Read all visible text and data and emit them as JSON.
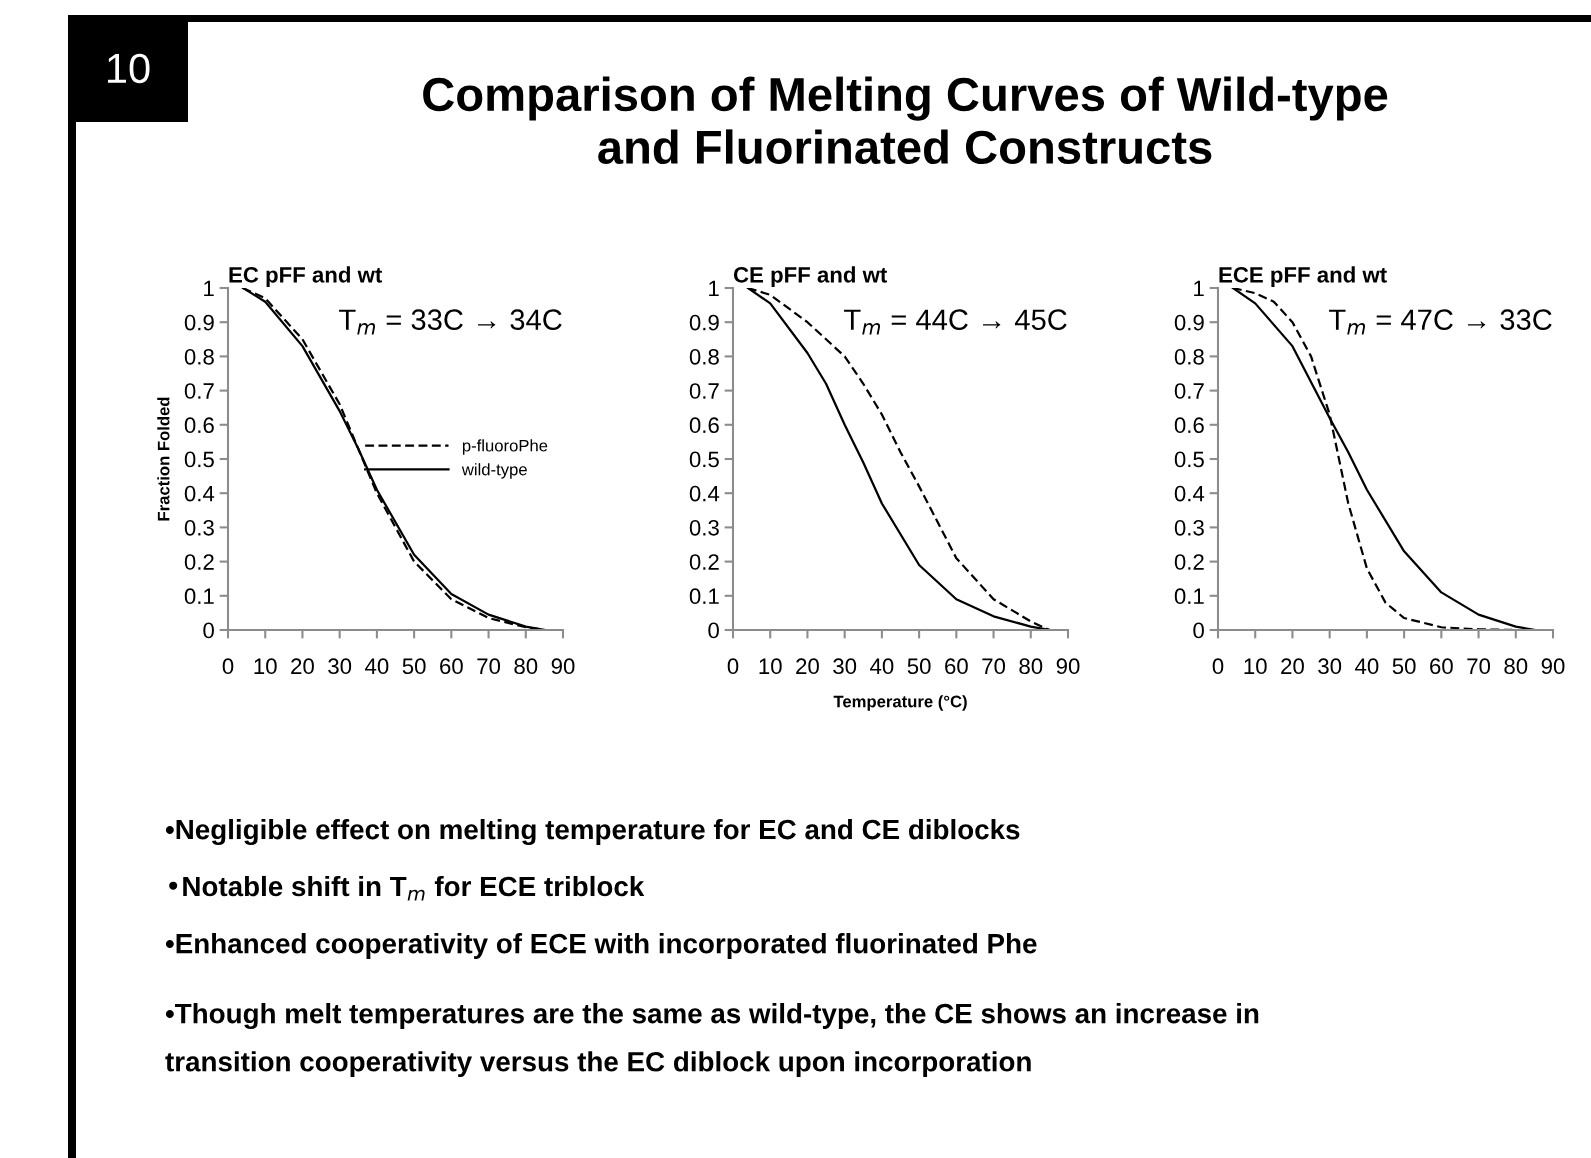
{
  "chart_data": [
    {
      "type": "other",
      "title": "Comparison of Melting Curves of Wild-type\nand Fluorinated Constructs",
      "annotations": [
        "10"
      ]
    },
    {
      "type": "line",
      "title": "EC pFF and wt",
      "ylabel": "Fraction Folded",
      "annotations": [
        "T$_{m}$ = 33C → 34C"
      ],
      "legend": "right",
      "xlim": [
        0,
        90
      ],
      "xticks": [
        0,
        10,
        20,
        30,
        40,
        50,
        60,
        70,
        80,
        90
      ],
      "ylim": [
        0,
        1
      ],
      "yticks": [
        0,
        0.1,
        0.2,
        0.3,
        0.4,
        0.5,
        0.6,
        0.7,
        0.8,
        0.9,
        1
      ],
      "grid": false,
      "marker": "none",
      "series": [
        {
          "name": "p-fluoroPhe",
          "color": "#000000",
          "line_style": "dashed",
          "x": [
            4,
            10,
            20,
            30,
            35,
            40,
            50,
            60,
            70,
            80,
            85
          ],
          "values": [
            1,
            0.97,
            0.85,
            0.66,
            0.53,
            0.4,
            0.2,
            0.09,
            0.035,
            0.008,
            0
          ]
        },
        {
          "name": "wild-type",
          "color": "#000000",
          "line_style": "solid",
          "x": [
            4,
            10,
            20,
            30,
            35,
            40,
            50,
            60,
            70,
            80,
            85
          ],
          "values": [
            1,
            0.96,
            0.83,
            0.64,
            0.53,
            0.41,
            0.22,
            0.105,
            0.045,
            0.01,
            0
          ]
        }
      ]
    },
    {
      "type": "line",
      "title": "CE pFF and wt",
      "xlabel": "Temperature (°C)",
      "annotations": [
        "T$_{m}$ = 44C → 45C"
      ],
      "xlim": [
        0,
        90
      ],
      "xticks": [
        0,
        10,
        20,
        30,
        40,
        50,
        60,
        70,
        80,
        90
      ],
      "ylim": [
        0,
        1
      ],
      "yticks": [
        0,
        0.1,
        0.2,
        0.3,
        0.4,
        0.5,
        0.6,
        0.7,
        0.8,
        0.9,
        1
      ],
      "grid": false,
      "marker": "none",
      "series": [
        {
          "color": "#000000",
          "line_style": "dashed",
          "x": [
            4,
            10,
            20,
            30,
            35,
            40,
            45,
            50,
            60,
            70,
            80,
            85
          ],
          "values": [
            1,
            0.98,
            0.9,
            0.8,
            0.72,
            0.63,
            0.52,
            0.42,
            0.21,
            0.09,
            0.025,
            0
          ]
        },
        {
          "color": "#000000",
          "line_style": "solid",
          "x": [
            4,
            10,
            20,
            25,
            30,
            35,
            40,
            50,
            60,
            70,
            80,
            85
          ],
          "values": [
            1,
            0.955,
            0.81,
            0.72,
            0.6,
            0.49,
            0.37,
            0.19,
            0.09,
            0.04,
            0.01,
            0
          ]
        }
      ]
    },
    {
      "type": "line",
      "title": "ECE pFF and wt",
      "annotations": [
        "T$_{m}$ = 47C → 33C"
      ],
      "xlim": [
        0,
        90
      ],
      "xticks": [
        0,
        10,
        20,
        30,
        40,
        50,
        60,
        70,
        80,
        90
      ],
      "ylim": [
        0,
        1
      ],
      "yticks": [
        0,
        0.1,
        0.2,
        0.3,
        0.4,
        0.5,
        0.6,
        0.7,
        0.8,
        0.9,
        1
      ],
      "grid": false,
      "marker": "none",
      "series": [
        {
          "color": "#000000",
          "line_style": "dashed",
          "x": [
            4,
            10,
            15,
            20,
            25,
            30,
            35,
            40,
            45,
            50,
            60,
            70,
            80,
            85
          ],
          "values": [
            1,
            0.985,
            0.96,
            0.9,
            0.8,
            0.63,
            0.37,
            0.18,
            0.08,
            0.035,
            0.008,
            0.002,
            0,
            0
          ]
        },
        {
          "color": "#000000",
          "line_style": "solid",
          "x": [
            4,
            10,
            20,
            30,
            35,
            40,
            50,
            60,
            70,
            80,
            85
          ],
          "values": [
            1,
            0.955,
            0.83,
            0.62,
            0.52,
            0.41,
            0.23,
            0.11,
            0.045,
            0.01,
            0
          ]
        }
      ]
    },
    {
      "type": "other",
      "annotations": [
        "•Negligible effect on melting temperature for EC and CE diblocks",
        "•Notable shift in T$_{m}$ for ECE triblock",
        "•Enhanced cooperativity of ECE with incorporated fluorinated Phe",
        "•Though melt temperatures are the same as wild-type, the CE shows an increase in\ntransition cooperativity versus the EC diblock upon incorporation"
      ]
    }
  ]
}
